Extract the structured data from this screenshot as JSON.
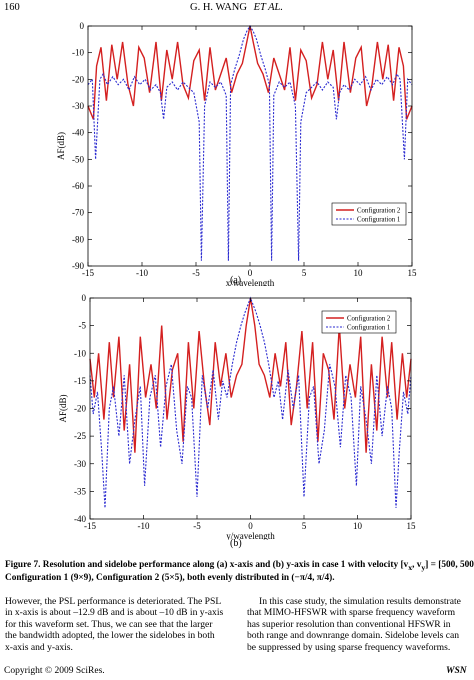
{
  "header": {
    "page_number": "160",
    "authors": "G. H. WANG",
    "et_al": "ET AL."
  },
  "figure": {
    "caption_line1": "Figure 7. Resolution and sidelobe performance along (a) x-axis and (b) y-axis in case 1 with velocity [v",
    "caption_sub_x": "x",
    "caption_comma": ", v",
    "caption_sub_y": "y",
    "caption_tail": "] = [500, 500] m/s.",
    "caption_line2": "Configuration 1 (9×9), Configuration 2 (5×5), both evenly distributed in (−π/4, π/4).",
    "panel_a_label": "(a)",
    "panel_b_label": "(b)"
  },
  "chart_data": [
    {
      "type": "line",
      "xlabel": "x/wavelength",
      "ylabel": "AF(dB)",
      "xlim": [
        -15,
        15
      ],
      "ylim": [
        -90,
        0
      ],
      "xticks": [
        "-15",
        "-10",
        "-5",
        "0",
        "5",
        "10",
        "15"
      ],
      "yticks": [
        "0",
        "-10",
        "-20",
        "-30",
        "-40",
        "-50",
        "-60",
        "-70",
        "-80",
        "-90"
      ],
      "legend_position": "bottom-right",
      "series": [
        {
          "name": "Configuration 2",
          "color": "#d42020",
          "x": [
            -15,
            -14.5,
            -14.2,
            -13.8,
            -13.3,
            -12.8,
            -12.3,
            -11.8,
            -11.3,
            -10.8,
            -10.3,
            -9.8,
            -9.3,
            -8.7,
            -8.2,
            -7.7,
            -7.2,
            -6.7,
            -6.2,
            -5.7,
            -5.2,
            -4.7,
            -4.2,
            -3.7,
            -3.2,
            -2.7,
            -2.2,
            -1.7,
            -1.2,
            -0.7,
            -0.3,
            0,
            0.3,
            0.7,
            1.2,
            1.7,
            2.2,
            2.7,
            3.2,
            3.7,
            4.2,
            4.7,
            5.2,
            5.7,
            6.2,
            6.7,
            7.2,
            7.7,
            8.2,
            8.7,
            9.3,
            9.8,
            10.3,
            10.8,
            11.3,
            11.8,
            12.3,
            12.8,
            13.3,
            13.8,
            14.2,
            14.5,
            15
          ],
          "y": [
            -30,
            -35,
            -15,
            -8,
            -28,
            -7,
            -20,
            -6,
            -22,
            -30,
            -8,
            -12,
            -25,
            -6,
            -28,
            -9,
            -20,
            -6,
            -22,
            -27,
            -13,
            -9,
            -28,
            -8,
            -24,
            -18,
            -12,
            -25,
            -18,
            -14,
            -6,
            0,
            -6,
            -14,
            -18,
            -25,
            -12,
            -18,
            -24,
            -8,
            -28,
            -9,
            -13,
            -27,
            -22,
            -6,
            -20,
            -9,
            -28,
            -6,
            -25,
            -12,
            -8,
            -30,
            -22,
            -6,
            -20,
            -7,
            -28,
            -8,
            -15,
            -35,
            -30
          ]
        },
        {
          "name": "Configuration 1",
          "color": "#2a2ad0",
          "x": [
            -15,
            -14.6,
            -14.3,
            -13.9,
            -13.6,
            -13.2,
            -12.7,
            -12.2,
            -11.7,
            -11.2,
            -10.7,
            -10.2,
            -9.7,
            -9.2,
            -8.7,
            -8.3,
            -8,
            -7.7,
            -7.2,
            -6.7,
            -6.2,
            -5.7,
            -5.2,
            -4.7,
            -4.5,
            -4.2,
            -3.7,
            -3.2,
            -2.7,
            -2.2,
            -2,
            -1.8,
            -1.4,
            -1,
            -0.6,
            -0.3,
            0,
            0.3,
            0.6,
            1,
            1.4,
            1.8,
            2,
            2.2,
            2.7,
            3.2,
            3.7,
            4.2,
            4.5,
            4.7,
            5.2,
            5.7,
            6.2,
            6.7,
            7.2,
            7.7,
            8,
            8.3,
            8.7,
            9.2,
            9.7,
            10.2,
            10.7,
            11.2,
            11.7,
            12.2,
            12.7,
            13.2,
            13.6,
            13.9,
            14.3,
            14.6,
            15
          ],
          "y": [
            -22,
            -20,
            -50,
            -20,
            -18,
            -22,
            -19,
            -22,
            -20,
            -24,
            -19,
            -22,
            -20,
            -24,
            -22,
            -25,
            -35,
            -23,
            -21,
            -24,
            -21,
            -23,
            -25,
            -36,
            -88,
            -30,
            -21,
            -23,
            -21,
            -26,
            -88,
            -22,
            -16,
            -11,
            -5,
            -2,
            0,
            -2,
            -5,
            -11,
            -16,
            -22,
            -88,
            -26,
            -21,
            -23,
            -21,
            -30,
            -88,
            -36,
            -25,
            -23,
            -21,
            -24,
            -21,
            -23,
            -35,
            -25,
            -22,
            -24,
            -20,
            -22,
            -19,
            -24,
            -20,
            -22,
            -19,
            -22,
            -18,
            -20,
            -50,
            -20,
            -22
          ]
        }
      ]
    },
    {
      "type": "line",
      "xlabel": "y/wavelength",
      "ylabel": "AF(dB)",
      "xlim": [
        -15,
        15
      ],
      "ylim": [
        -40,
        0
      ],
      "xticks": [
        "-15",
        "-10",
        "-5",
        "0",
        "5",
        "10",
        "15"
      ],
      "yticks": [
        "0",
        "-5",
        "-10",
        "-15",
        "-20",
        "-25",
        "-30",
        "-35",
        "-40"
      ],
      "legend_position": "top-right",
      "series": [
        {
          "name": "Configuration 2",
          "color": "#d42020",
          "x": [
            -15,
            -14.6,
            -14.2,
            -13.7,
            -13.2,
            -12.8,
            -12.3,
            -11.8,
            -11.3,
            -10.8,
            -10.3,
            -9.8,
            -9.3,
            -8.8,
            -8.3,
            -7.8,
            -7.3,
            -6.8,
            -6.3,
            -5.8,
            -5.3,
            -4.8,
            -4.3,
            -3.8,
            -3.3,
            -2.8,
            -2.3,
            -1.8,
            -1.3,
            -0.8,
            -0.4,
            0,
            0.4,
            0.8,
            1.3,
            1.8,
            2.3,
            2.8,
            3.3,
            3.8,
            4.3,
            4.8,
            5.3,
            5.8,
            6.3,
            6.8,
            7.3,
            7.8,
            8.3,
            8.8,
            9.3,
            9.8,
            10.3,
            10.8,
            11.3,
            11.8,
            12.3,
            12.8,
            13.2,
            13.7,
            14.2,
            14.6,
            15
          ],
          "y": [
            -11,
            -18,
            -10,
            -22,
            -8,
            -18,
            -7,
            -24,
            -12,
            -28,
            -7,
            -18,
            -12,
            -20,
            -5,
            -22,
            -13,
            -10,
            -26,
            -8,
            -20,
            -6,
            -16,
            -23,
            -8,
            -16,
            -10,
            -18,
            -14,
            -12,
            -5,
            0,
            -5,
            -12,
            -14,
            -18,
            -10,
            -16,
            -8,
            -23,
            -16,
            -6,
            -20,
            -8,
            -26,
            -10,
            -13,
            -22,
            -5,
            -20,
            -12,
            -18,
            -7,
            -28,
            -12,
            -24,
            -7,
            -18,
            -8,
            -22,
            -10,
            -18,
            -11
          ]
        },
        {
          "name": "Configuration 1",
          "color": "#2a2ad0",
          "x": [
            -15,
            -14.7,
            -14.3,
            -13.9,
            -13.6,
            -13.2,
            -12.8,
            -12.3,
            -11.8,
            -11.3,
            -10.8,
            -10.3,
            -9.9,
            -9.4,
            -8.9,
            -8.4,
            -7.9,
            -7.4,
            -6.9,
            -6.4,
            -5.9,
            -5.5,
            -5,
            -4.5,
            -4,
            -3.5,
            -3,
            -2.6,
            -2.2,
            -1.7,
            -1.3,
            -0.9,
            -0.5,
            -0.2,
            0,
            0.2,
            0.5,
            0.9,
            1.3,
            1.7,
            2.2,
            2.6,
            3,
            3.5,
            4,
            4.5,
            5,
            5.5,
            5.9,
            6.4,
            6.9,
            7.4,
            7.9,
            8.4,
            8.9,
            9.4,
            9.9,
            10.3,
            10.8,
            11.3,
            11.8,
            12.3,
            12.8,
            13.2,
            13.6,
            13.9,
            14.3,
            14.7,
            15
          ],
          "y": [
            -14,
            -21,
            -17,
            -28,
            -38,
            -20,
            -16,
            -25,
            -14,
            -30,
            -22,
            -16,
            -34,
            -18,
            -14,
            -27,
            -16,
            -12,
            -24,
            -30,
            -16,
            -18,
            -36,
            -14,
            -20,
            -13,
            -22,
            -15,
            -18,
            -12,
            -8,
            -5,
            -2.5,
            -1,
            0,
            -1,
            -2.5,
            -5,
            -8,
            -12,
            -18,
            -15,
            -22,
            -13,
            -20,
            -14,
            -36,
            -18,
            -16,
            -30,
            -24,
            -12,
            -16,
            -27,
            -14,
            -18,
            -34,
            -16,
            -22,
            -30,
            -14,
            -25,
            -16,
            -20,
            -38,
            -28,
            -17,
            -21,
            -14
          ]
        }
      ]
    }
  ],
  "body_left": [
    "However, the PSL performance is deteriorated. The PSL",
    "in x-axis is about –12.9 dB and is about –10 dB in y-axis",
    "for this waveform set. Thus, we can see that the larger",
    "the bandwidth adopted, the lower the sidelobes in both",
    "x-axis and y-axis."
  ],
  "body_right": [
    "In this case study, the simulation results demonstrate",
    "that MIMO-HFSWR with sparse frequency waveform",
    "has superior resolution than conventional HFSWR in",
    "both range and downrange domain. Sidelobe levels can",
    "be suppressed by using sparse frequency waveforms."
  ],
  "footer": {
    "copyright": "Copyright © 2009 SciRes.",
    "journal": "WSN"
  }
}
